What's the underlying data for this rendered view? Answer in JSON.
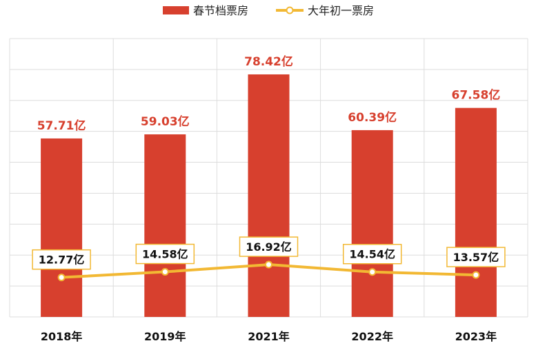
{
  "chart_data": {
    "type": "bar",
    "categories": [
      "2018年",
      "2019年",
      "2021年",
      "2022年",
      "2023年"
    ],
    "series": [
      {
        "name": "春节档票房",
        "type": "bar",
        "values": [
          57.71,
          59.03,
          78.42,
          60.39,
          67.58
        ],
        "labels": [
          "57.71亿",
          "59.03亿",
          "78.42亿",
          "60.39亿",
          "67.58亿"
        ],
        "color": "#d7402e",
        "label_color": "#d7402e"
      },
      {
        "name": "大年初一票房",
        "type": "line",
        "values": [
          12.77,
          14.58,
          16.92,
          14.54,
          13.57
        ],
        "labels": [
          "12.77亿",
          "14.58亿",
          "16.92亿",
          "14.54亿",
          "13.57亿"
        ],
        "color": "#f2b833"
      }
    ],
    "ylim": [
      0,
      90
    ],
    "grid": true,
    "legend_position": "top-center"
  }
}
